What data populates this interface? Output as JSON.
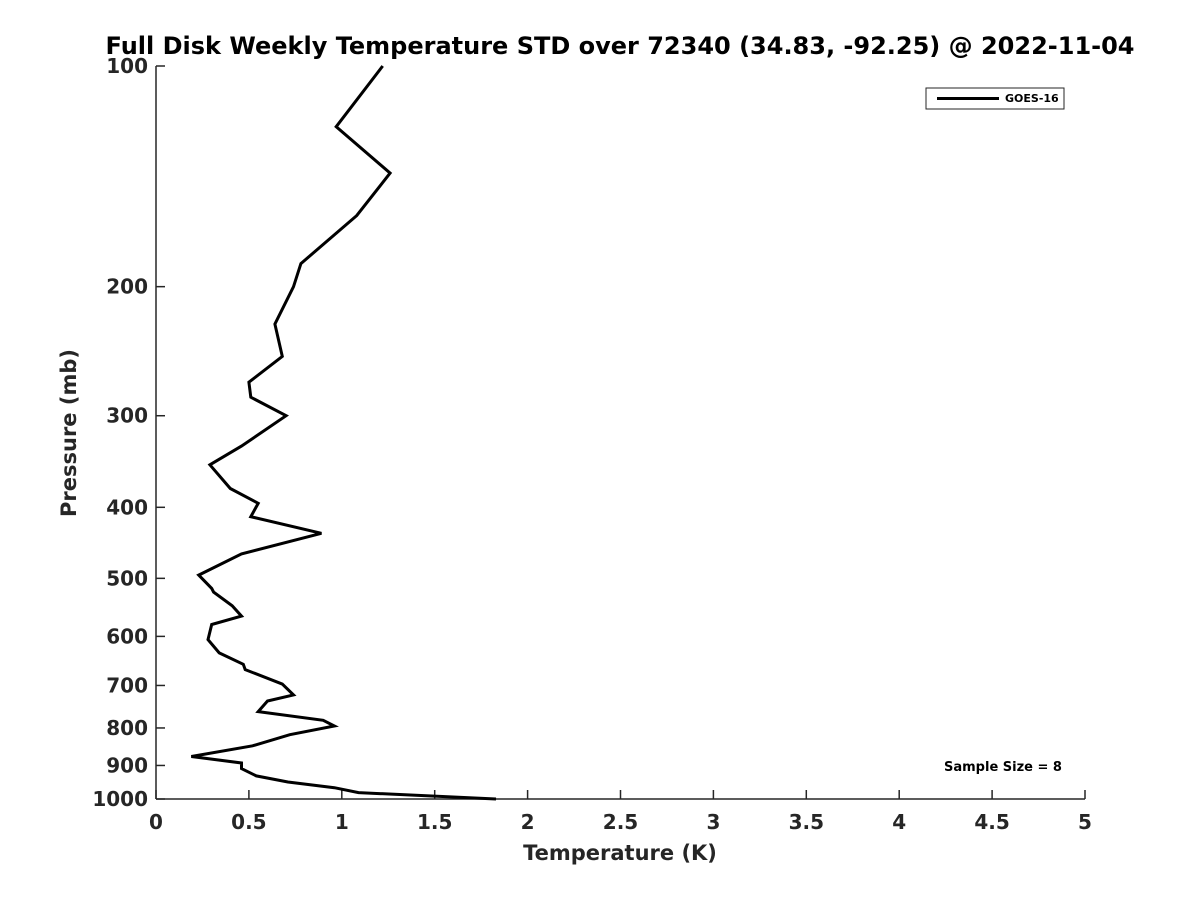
{
  "chart_data": {
    "type": "line",
    "title": "Full Disk Weekly Temperature STD over 72340 (34.83, -92.25) @ 2022-11-04",
    "xlabel": "Temperature (K)",
    "ylabel": "Pressure (mb)",
    "xlim": [
      0,
      5
    ],
    "ylim": [
      100,
      1000
    ],
    "y_scale": "log",
    "y_reversed": true,
    "x_ticks": [
      "0",
      "0.5",
      "1",
      "1.5",
      "2",
      "2.5",
      "3",
      "3.5",
      "4",
      "4.5",
      "5"
    ],
    "x_tick_values": [
      0,
      0.5,
      1,
      1.5,
      2,
      2.5,
      3,
      3.5,
      4,
      4.5,
      5
    ],
    "y_ticks": [
      "100",
      "200",
      "300",
      "400",
      "500",
      "600",
      "700",
      "800",
      "900",
      "1000"
    ],
    "y_tick_values": [
      100,
      200,
      300,
      400,
      500,
      600,
      700,
      800,
      900,
      1000
    ],
    "grid": false,
    "legend_position": "top-right",
    "series": [
      {
        "name": "GOES-16",
        "color": "#000000",
        "x": [
          1.22,
          0.97,
          1.26,
          1.08,
          0.78,
          0.74,
          0.64,
          0.68,
          0.5,
          0.51,
          0.7,
          0.46,
          0.29,
          0.4,
          0.55,
          0.51,
          0.89,
          0.46,
          0.23,
          0.3,
          0.31,
          0.41,
          0.46,
          0.3,
          0.28,
          0.34,
          0.47,
          0.48,
          0.68,
          0.74,
          0.6,
          0.55,
          0.9,
          0.96,
          0.72,
          0.52,
          0.19,
          0.46,
          0.46,
          0.54,
          0.71,
          0.96,
          1.09,
          1.83
        ],
        "y": [
          100,
          121,
          140,
          160,
          186,
          200,
          225,
          249,
          270,
          283,
          300,
          330,
          350,
          377,
          395,
          412,
          434,
          463,
          495,
          516,
          522,
          545,
          563,
          578,
          606,
          632,
          655,
          666,
          697,
          721,
          735,
          760,
          781,
          795,
          817,
          846,
          875,
          893,
          909,
          930,
          948,
          965,
          980,
          1000
        ]
      }
    ],
    "annotation": "Sample Size = 8"
  }
}
